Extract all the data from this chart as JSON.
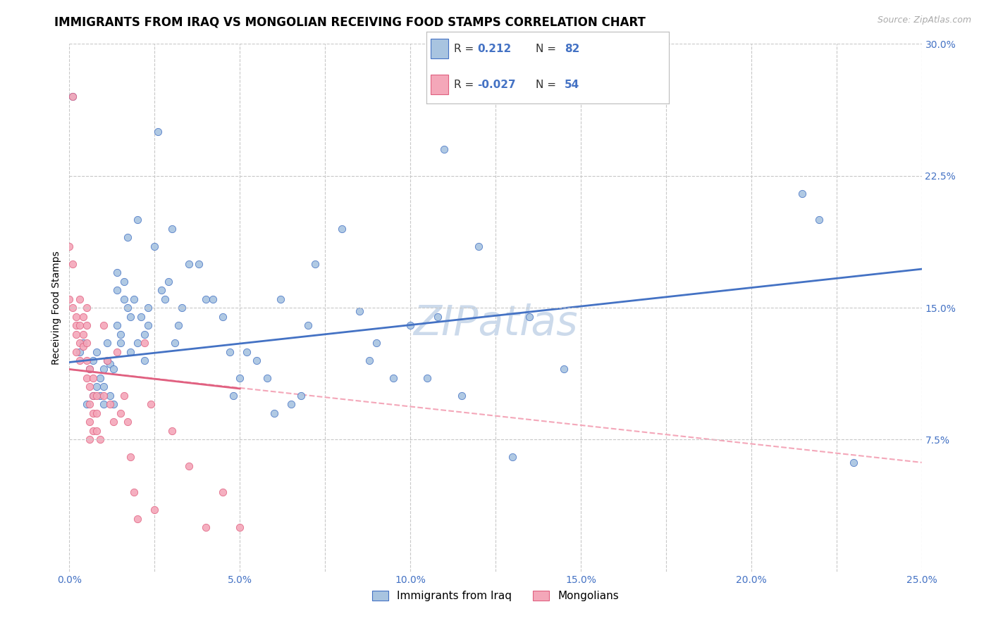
{
  "title": "IMMIGRANTS FROM IRAQ VS MONGOLIAN RECEIVING FOOD STAMPS CORRELATION CHART",
  "source_text": "Source: ZipAtlas.com",
  "ylabel": "Receiving Food Stamps",
  "xlim": [
    0.0,
    0.25
  ],
  "ylim": [
    0.0,
    0.3
  ],
  "xtick_labels": [
    "0.0%",
    "",
    "5.0%",
    "",
    "10.0%",
    "",
    "15.0%",
    "",
    "20.0%",
    "",
    "25.0%"
  ],
  "xtick_vals": [
    0.0,
    0.025,
    0.05,
    0.075,
    0.1,
    0.125,
    0.15,
    0.175,
    0.2,
    0.225,
    0.25
  ],
  "ytick_labels_right": [
    "7.5%",
    "15.0%",
    "22.5%",
    "30.0%"
  ],
  "ytick_vals_right": [
    0.075,
    0.15,
    0.225,
    0.3
  ],
  "watermark": "ZIPatlas",
  "iraq_color": "#a8c4e0",
  "mongol_color": "#f4a7b9",
  "iraq_line_color": "#4472c4",
  "mongol_line_color": "#e06080",
  "iraq_scatter": [
    [
      0.001,
      0.27
    ],
    [
      0.003,
      0.125
    ],
    [
      0.004,
      0.13
    ],
    [
      0.005,
      0.095
    ],
    [
      0.006,
      0.115
    ],
    [
      0.007,
      0.1
    ],
    [
      0.007,
      0.12
    ],
    [
      0.008,
      0.125
    ],
    [
      0.008,
      0.105
    ],
    [
      0.009,
      0.1
    ],
    [
      0.009,
      0.11
    ],
    [
      0.01,
      0.115
    ],
    [
      0.01,
      0.105
    ],
    [
      0.01,
      0.095
    ],
    [
      0.011,
      0.13
    ],
    [
      0.011,
      0.12
    ],
    [
      0.012,
      0.118
    ],
    [
      0.012,
      0.1
    ],
    [
      0.013,
      0.115
    ],
    [
      0.013,
      0.095
    ],
    [
      0.014,
      0.17
    ],
    [
      0.014,
      0.16
    ],
    [
      0.014,
      0.14
    ],
    [
      0.015,
      0.135
    ],
    [
      0.015,
      0.13
    ],
    [
      0.016,
      0.165
    ],
    [
      0.016,
      0.155
    ],
    [
      0.017,
      0.19
    ],
    [
      0.017,
      0.15
    ],
    [
      0.018,
      0.145
    ],
    [
      0.018,
      0.125
    ],
    [
      0.019,
      0.155
    ],
    [
      0.02,
      0.2
    ],
    [
      0.02,
      0.13
    ],
    [
      0.021,
      0.145
    ],
    [
      0.022,
      0.135
    ],
    [
      0.022,
      0.12
    ],
    [
      0.023,
      0.15
    ],
    [
      0.023,
      0.14
    ],
    [
      0.025,
      0.185
    ],
    [
      0.026,
      0.25
    ],
    [
      0.027,
      0.16
    ],
    [
      0.028,
      0.155
    ],
    [
      0.029,
      0.165
    ],
    [
      0.03,
      0.195
    ],
    [
      0.031,
      0.13
    ],
    [
      0.032,
      0.14
    ],
    [
      0.033,
      0.15
    ],
    [
      0.035,
      0.175
    ],
    [
      0.038,
      0.175
    ],
    [
      0.04,
      0.155
    ],
    [
      0.042,
      0.155
    ],
    [
      0.045,
      0.145
    ],
    [
      0.047,
      0.125
    ],
    [
      0.048,
      0.1
    ],
    [
      0.05,
      0.11
    ],
    [
      0.052,
      0.125
    ],
    [
      0.055,
      0.12
    ],
    [
      0.058,
      0.11
    ],
    [
      0.06,
      0.09
    ],
    [
      0.062,
      0.155
    ],
    [
      0.065,
      0.095
    ],
    [
      0.068,
      0.1
    ],
    [
      0.07,
      0.14
    ],
    [
      0.072,
      0.175
    ],
    [
      0.08,
      0.195
    ],
    [
      0.085,
      0.148
    ],
    [
      0.088,
      0.12
    ],
    [
      0.09,
      0.13
    ],
    [
      0.095,
      0.11
    ],
    [
      0.1,
      0.14
    ],
    [
      0.105,
      0.11
    ],
    [
      0.108,
      0.145
    ],
    [
      0.11,
      0.24
    ],
    [
      0.115,
      0.1
    ],
    [
      0.12,
      0.185
    ],
    [
      0.13,
      0.065
    ],
    [
      0.135,
      0.145
    ],
    [
      0.145,
      0.115
    ],
    [
      0.215,
      0.215
    ],
    [
      0.22,
      0.2
    ],
    [
      0.23,
      0.062
    ]
  ],
  "mongol_scatter": [
    [
      0.0,
      0.185
    ],
    [
      0.0,
      0.155
    ],
    [
      0.001,
      0.27
    ],
    [
      0.001,
      0.175
    ],
    [
      0.001,
      0.15
    ],
    [
      0.002,
      0.145
    ],
    [
      0.002,
      0.14
    ],
    [
      0.002,
      0.135
    ],
    [
      0.002,
      0.125
    ],
    [
      0.003,
      0.155
    ],
    [
      0.003,
      0.14
    ],
    [
      0.003,
      0.13
    ],
    [
      0.003,
      0.12
    ],
    [
      0.004,
      0.145
    ],
    [
      0.004,
      0.135
    ],
    [
      0.004,
      0.128
    ],
    [
      0.005,
      0.15
    ],
    [
      0.005,
      0.14
    ],
    [
      0.005,
      0.13
    ],
    [
      0.005,
      0.12
    ],
    [
      0.005,
      0.11
    ],
    [
      0.006,
      0.115
    ],
    [
      0.006,
      0.105
    ],
    [
      0.006,
      0.095
    ],
    [
      0.006,
      0.085
    ],
    [
      0.006,
      0.075
    ],
    [
      0.007,
      0.11
    ],
    [
      0.007,
      0.1
    ],
    [
      0.007,
      0.09
    ],
    [
      0.007,
      0.08
    ],
    [
      0.008,
      0.1
    ],
    [
      0.008,
      0.09
    ],
    [
      0.008,
      0.08
    ],
    [
      0.009,
      0.075
    ],
    [
      0.01,
      0.14
    ],
    [
      0.01,
      0.1
    ],
    [
      0.011,
      0.12
    ],
    [
      0.012,
      0.095
    ],
    [
      0.013,
      0.085
    ],
    [
      0.014,
      0.125
    ],
    [
      0.015,
      0.09
    ],
    [
      0.016,
      0.1
    ],
    [
      0.017,
      0.085
    ],
    [
      0.018,
      0.065
    ],
    [
      0.019,
      0.045
    ],
    [
      0.02,
      0.03
    ],
    [
      0.022,
      0.13
    ],
    [
      0.024,
      0.095
    ],
    [
      0.025,
      0.035
    ],
    [
      0.03,
      0.08
    ],
    [
      0.035,
      0.06
    ],
    [
      0.04,
      0.025
    ],
    [
      0.045,
      0.045
    ],
    [
      0.05,
      0.025
    ]
  ],
  "iraq_trendline": [
    [
      0.0,
      0.119
    ],
    [
      0.25,
      0.172
    ]
  ],
  "mongol_trendline_solid": [
    [
      0.0,
      0.115
    ],
    [
      0.05,
      0.104
    ]
  ],
  "mongol_trendline_full": [
    [
      0.0,
      0.115
    ],
    [
      0.25,
      0.062
    ]
  ],
  "background_color": "#ffffff",
  "grid_color": "#c8c8c8",
  "title_fontsize": 12,
  "axis_label_fontsize": 10,
  "tick_fontsize": 10,
  "watermark_color": "#ccdaeb"
}
